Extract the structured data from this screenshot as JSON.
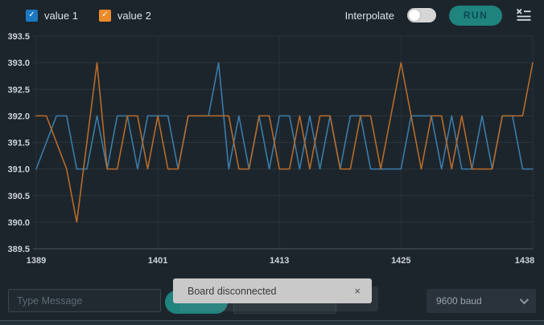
{
  "header": {
    "series_toggles": [
      {
        "label": "value 1",
        "checked": true,
        "box_color": "#1b78c1",
        "check_glyph": "✓"
      },
      {
        "label": "value 2",
        "checked": true,
        "box_color": "#ec8b2c",
        "check_glyph": "✓"
      }
    ],
    "interpolate_label": "Interpolate",
    "interpolate_on": false,
    "run_label": "RUN"
  },
  "chart_data": {
    "type": "line",
    "title": "",
    "xlabel": "",
    "ylabel": "",
    "xlim": [
      1389,
      1438
    ],
    "ylim": [
      389.5,
      393.5
    ],
    "xticks": [
      1389,
      1401,
      1413,
      1425,
      1438
    ],
    "yticks": [
      389.5,
      390.0,
      390.5,
      391.0,
      391.5,
      392.0,
      392.5,
      393.0,
      393.5
    ],
    "grid": true,
    "legend_position": "top-left",
    "x_start": 1389,
    "series": [
      {
        "name": "value 1",
        "color": "#3a7ca8",
        "values": [
          391,
          391.5,
          392,
          392,
          391,
          391,
          392,
          391,
          392,
          392,
          391,
          392,
          392,
          392,
          391,
          392,
          392,
          392,
          393,
          391,
          392,
          391,
          392,
          391,
          392,
          392,
          391,
          392,
          391,
          392,
          391,
          392,
          392,
          391,
          391,
          391,
          391,
          392,
          392,
          392,
          391,
          392,
          391,
          391,
          392,
          391,
          392,
          392,
          391,
          391
        ]
      },
      {
        "name": "value 2",
        "color": "#b76b2a",
        "values": [
          392,
          392,
          391.5,
          391,
          390,
          391.5,
          393,
          391,
          391,
          392,
          392,
          391,
          392,
          391,
          391,
          392,
          392,
          392,
          392,
          392,
          391,
          391,
          392,
          392,
          391,
          391,
          392,
          391,
          392,
          392,
          391,
          391,
          392,
          392,
          391,
          392,
          393,
          392,
          391,
          392,
          392,
          391,
          392,
          391,
          391,
          391,
          392,
          392,
          392,
          393
        ]
      }
    ],
    "axis_colors": {
      "grid": "#2b353d",
      "vgrid": "#27313a",
      "axis_line": "#3b474f",
      "tick_text": "#ccd3d8"
    }
  },
  "footer": {
    "message_placeholder": "Type Message",
    "baud_value": "9600 baud"
  },
  "toast": {
    "text": "Board disconnected",
    "close_label": "×"
  }
}
